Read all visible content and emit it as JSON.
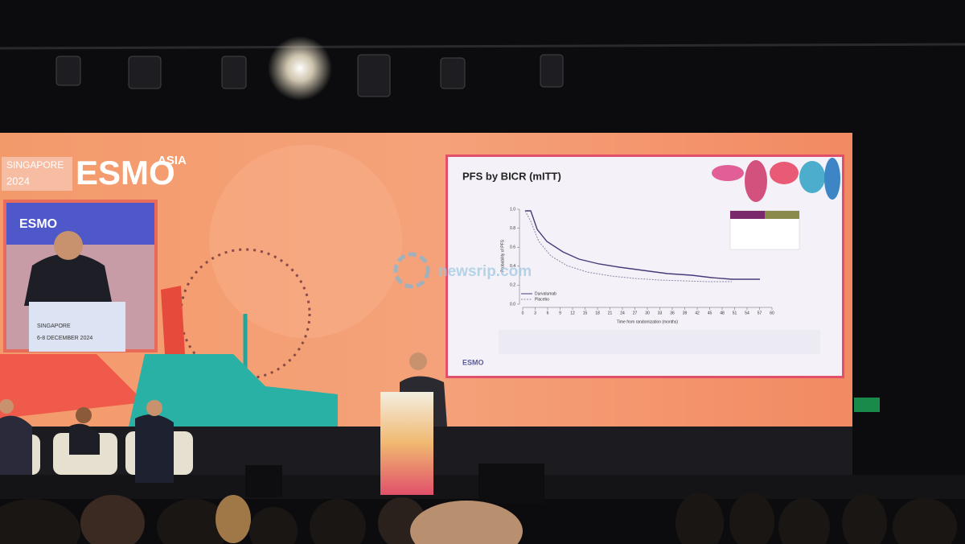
{
  "screen": {
    "brand_city": "SINGAPORE",
    "brand_year": "2024",
    "brand_name": "ESMO",
    "brand_region": "ASIA"
  },
  "inset": {
    "brand_name": "ESMO",
    "city": "SINGAPORE",
    "dates": "6-8 DECEMBER 2024"
  },
  "slide": {
    "title": "PFS by BICR (mITT)",
    "y_label": "Probability of PFS",
    "x_label": "Time from randomization (months)",
    "ylim": [
      0,
      1
    ],
    "yticks": [
      {
        "value": 0,
        "label": "0.0"
      },
      {
        "value": 0.2,
        "label": "0.2"
      },
      {
        "value": 0.4,
        "label": "0.4"
      },
      {
        "value": 0.6,
        "label": "0.6"
      },
      {
        "value": 0.8,
        "label": "0.8"
      },
      {
        "value": 1,
        "label": "1.0"
      }
    ],
    "xlim": [
      0,
      60
    ],
    "xticks": [
      0,
      3,
      6,
      9,
      12,
      15,
      18,
      21,
      24,
      27,
      30,
      33,
      36,
      39,
      42,
      45,
      48,
      51,
      54,
      57,
      60
    ],
    "legend": [
      "Durvalumab",
      "Placebo"
    ],
    "footer_brand": "ESMO"
  },
  "watermark": "newsrip.com"
}
